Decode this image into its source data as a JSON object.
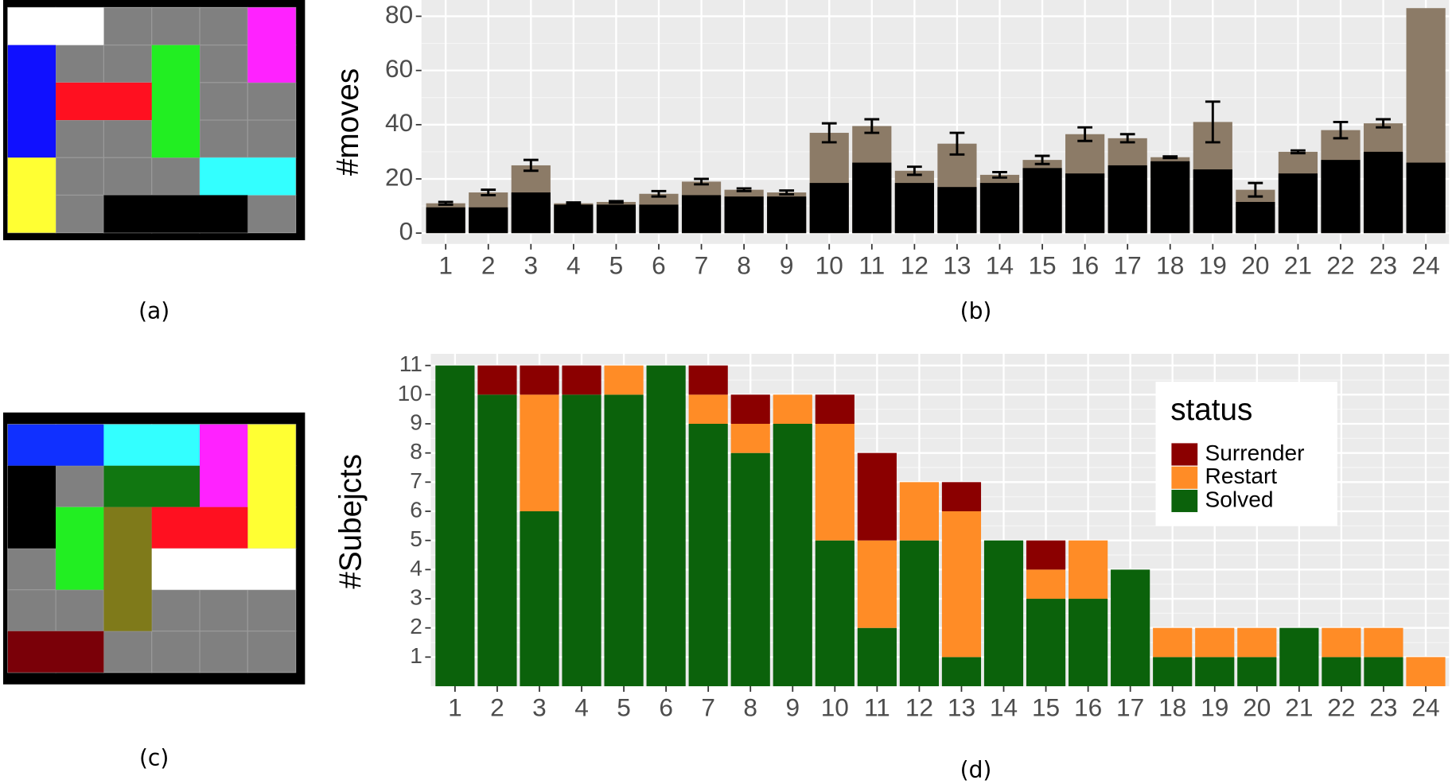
{
  "captions": [
    "(a)",
    "(b)",
    "(c)",
    "(d)"
  ],
  "chart_data": [
    {
      "type": "bar",
      "stacked": false,
      "ylabel": "#moves",
      "categories": [
        "1",
        "2",
        "3",
        "4",
        "5",
        "6",
        "7",
        "8",
        "9",
        "10",
        "11",
        "12",
        "13",
        "14",
        "15",
        "16",
        "17",
        "18",
        "19",
        "20",
        "21",
        "22",
        "23",
        "24"
      ],
      "series": [
        {
          "color": "#8c7b67",
          "values": [
            11,
            15,
            25,
            11,
            11.5,
            14.5,
            19,
            16,
            15,
            37,
            39.5,
            23,
            33,
            21.5,
            27,
            36.5,
            35,
            28,
            41,
            16,
            30,
            38,
            40.5,
            83
          ],
          "errors": [
            0.5,
            1,
            2,
            0.3,
            0.3,
            1,
            1,
            0.5,
            0.7,
            3.5,
            2.5,
            1.5,
            4,
            1,
            1.5,
            2.5,
            1.5,
            0.3,
            7.5,
            2.5,
            0.5,
            3,
            1.5,
            null
          ]
        },
        {
          "color": "#000000",
          "values": [
            9.5,
            9.5,
            15,
            10.5,
            10.5,
            10.5,
            14,
            13.5,
            13.5,
            18.5,
            26,
            18.5,
            17,
            18.5,
            24,
            22,
            25,
            26.5,
            23.5,
            11.5,
            22,
            27,
            30,
            26
          ]
        }
      ],
      "ylim": [
        -4,
        86
      ],
      "yticks": [
        0,
        20,
        40,
        60,
        80
      ],
      "grid": true
    },
    {
      "type": "bar",
      "stacked": true,
      "ylabel": "#Subejcts",
      "legend_title": "status",
      "legend": "top-right",
      "categories": [
        "1",
        "2",
        "3",
        "4",
        "5",
        "6",
        "7",
        "8",
        "9",
        "10",
        "11",
        "12",
        "13",
        "14",
        "15",
        "16",
        "17",
        "18",
        "19",
        "20",
        "21",
        "22",
        "23",
        "24"
      ],
      "series": [
        {
          "name": "Solved",
          "color": "#0b620b",
          "values": [
            11,
            10,
            6,
            10,
            10,
            11,
            9,
            8,
            9,
            5,
            2,
            5,
            1,
            5,
            3,
            3,
            4,
            1,
            1,
            1,
            2,
            1,
            1,
            0
          ]
        },
        {
          "name": "Restart",
          "color": "#ff8c26",
          "values": [
            0,
            0,
            4,
            0,
            1,
            0,
            1,
            1,
            1,
            4,
            3,
            2,
            5,
            0,
            1,
            2,
            0,
            1,
            1,
            1,
            0,
            1,
            1,
            1
          ]
        },
        {
          "name": "Surrender",
          "color": "#8b0000",
          "values": [
            0,
            1,
            1,
            1,
            0,
            0,
            1,
            1,
            0,
            1,
            3,
            0,
            1,
            0,
            1,
            0,
            0,
            0,
            0,
            0,
            0,
            0,
            0,
            0
          ]
        }
      ],
      "ylim": [
        0,
        11.4
      ],
      "yticks": [
        1,
        2,
        3,
        4,
        5,
        6,
        7,
        8,
        9,
        10,
        11
      ],
      "grid": true
    }
  ]
}
